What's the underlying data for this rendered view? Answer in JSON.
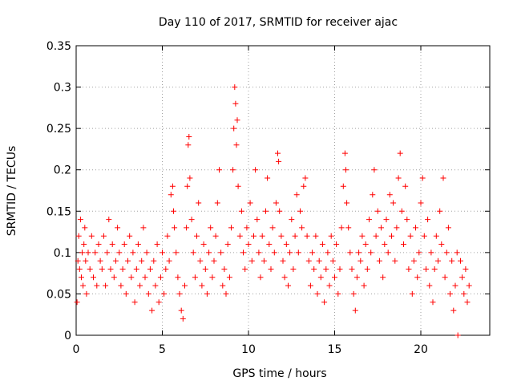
{
  "chart_data": {
    "type": "scatter",
    "title": "Day 110 of 2017, SRMTID for receiver ajac",
    "xlabel": "GPS time / hours",
    "ylabel": "SRMTID / TECUs",
    "xlim": [
      0,
      24
    ],
    "ylim": [
      0,
      0.35
    ],
    "xticks": [
      0,
      5,
      10,
      15,
      20
    ],
    "xtick_labels": [
      "0",
      "5",
      "10",
      "15",
      "20"
    ],
    "yticks": [
      0,
      0.05,
      0.1,
      0.15,
      0.2,
      0.25,
      0.3,
      0.35
    ],
    "ytick_labels": [
      "0",
      "0.05",
      "0.1",
      "0.15",
      "0.2",
      "0.25",
      "0.3",
      "0.35"
    ],
    "grid": true,
    "marker": "plus",
    "color": "#ff0000",
    "series": [
      {
        "name": "SRMTID",
        "points": [
          [
            0.05,
            0.04
          ],
          [
            0.1,
            0.09
          ],
          [
            0.15,
            0.12
          ],
          [
            0.2,
            0.08
          ],
          [
            0.25,
            0.14
          ],
          [
            0.3,
            0.07
          ],
          [
            0.35,
            0.1
          ],
          [
            0.4,
            0.06
          ],
          [
            0.45,
            0.11
          ],
          [
            0.5,
            0.13
          ],
          [
            0.55,
            0.09
          ],
          [
            0.6,
            0.05
          ],
          [
            0.7,
            0.1
          ],
          [
            0.8,
            0.08
          ],
          [
            0.9,
            0.12
          ],
          [
            1.0,
            0.07
          ],
          [
            1.1,
            0.1
          ],
          [
            1.2,
            0.06
          ],
          [
            1.3,
            0.11
          ],
          [
            1.4,
            0.09
          ],
          [
            1.5,
            0.08
          ],
          [
            1.6,
            0.12
          ],
          [
            1.7,
            0.06
          ],
          [
            1.8,
            0.1
          ],
          [
            1.9,
            0.14
          ],
          [
            2.0,
            0.08
          ],
          [
            2.1,
            0.11
          ],
          [
            2.2,
            0.07
          ],
          [
            2.3,
            0.09
          ],
          [
            2.4,
            0.13
          ],
          [
            2.5,
            0.1
          ],
          [
            2.6,
            0.06
          ],
          [
            2.7,
            0.08
          ],
          [
            2.8,
            0.11
          ],
          [
            2.9,
            0.05
          ],
          [
            3.0,
            0.09
          ],
          [
            3.1,
            0.12
          ],
          [
            3.2,
            0.07
          ],
          [
            3.3,
            0.1
          ],
          [
            3.4,
            0.04
          ],
          [
            3.5,
            0.08
          ],
          [
            3.6,
            0.11
          ],
          [
            3.7,
            0.06
          ],
          [
            3.8,
            0.09
          ],
          [
            3.9,
            0.13
          ],
          [
            4.0,
            0.07
          ],
          [
            4.1,
            0.1
          ],
          [
            4.2,
            0.05
          ],
          [
            4.3,
            0.08
          ],
          [
            4.4,
            0.03
          ],
          [
            4.5,
            0.09
          ],
          [
            4.6,
            0.06
          ],
          [
            4.7,
            0.11
          ],
          [
            4.8,
            0.04
          ],
          [
            4.9,
            0.07
          ],
          [
            5.0,
            0.1
          ],
          [
            5.1,
            0.05
          ],
          [
            5.2,
            0.08
          ],
          [
            5.3,
            0.12
          ],
          [
            5.4,
            0.09
          ],
          [
            5.5,
            0.17
          ],
          [
            5.6,
            0.18
          ],
          [
            5.65,
            0.15
          ],
          [
            5.7,
            0.13
          ],
          [
            5.8,
            0.1
          ],
          [
            5.9,
            0.07
          ],
          [
            6.0,
            0.05
          ],
          [
            6.1,
            0.03
          ],
          [
            6.2,
            0.02
          ],
          [
            6.3,
            0.06
          ],
          [
            6.4,
            0.13
          ],
          [
            6.45,
            0.18
          ],
          [
            6.5,
            0.23
          ],
          [
            6.55,
            0.24
          ],
          [
            6.6,
            0.19
          ],
          [
            6.7,
            0.14
          ],
          [
            6.8,
            0.1
          ],
          [
            6.9,
            0.07
          ],
          [
            7.0,
            0.12
          ],
          [
            7.1,
            0.16
          ],
          [
            7.2,
            0.09
          ],
          [
            7.3,
            0.06
          ],
          [
            7.4,
            0.11
          ],
          [
            7.5,
            0.08
          ],
          [
            7.6,
            0.05
          ],
          [
            7.7,
            0.1
          ],
          [
            7.8,
            0.13
          ],
          [
            7.9,
            0.07
          ],
          [
            8.0,
            0.09
          ],
          [
            8.1,
            0.12
          ],
          [
            8.2,
            0.16
          ],
          [
            8.3,
            0.2
          ],
          [
            8.4,
            0.1
          ],
          [
            8.5,
            0.06
          ],
          [
            8.6,
            0.08
          ],
          [
            8.7,
            0.05
          ],
          [
            8.8,
            0.11
          ],
          [
            8.9,
            0.07
          ],
          [
            9.0,
            0.13
          ],
          [
            9.1,
            0.2
          ],
          [
            9.15,
            0.25
          ],
          [
            9.2,
            0.3
          ],
          [
            9.25,
            0.28
          ],
          [
            9.3,
            0.23
          ],
          [
            9.35,
            0.26
          ],
          [
            9.4,
            0.18
          ],
          [
            9.5,
            0.12
          ],
          [
            9.6,
            0.15
          ],
          [
            9.7,
            0.1
          ],
          [
            9.8,
            0.08
          ],
          [
            9.9,
            0.13
          ],
          [
            10.0,
            0.11
          ],
          [
            10.1,
            0.16
          ],
          [
            10.2,
            0.09
          ],
          [
            10.3,
            0.12
          ],
          [
            10.4,
            0.2
          ],
          [
            10.5,
            0.14
          ],
          [
            10.6,
            0.1
          ],
          [
            10.7,
            0.07
          ],
          [
            10.8,
            0.12
          ],
          [
            10.9,
            0.09
          ],
          [
            11.0,
            0.15
          ],
          [
            11.1,
            0.19
          ],
          [
            11.2,
            0.11
          ],
          [
            11.3,
            0.08
          ],
          [
            11.4,
            0.13
          ],
          [
            11.5,
            0.1
          ],
          [
            11.6,
            0.16
          ],
          [
            11.7,
            0.22
          ],
          [
            11.75,
            0.21
          ],
          [
            11.8,
            0.15
          ],
          [
            11.9,
            0.12
          ],
          [
            12.0,
            0.09
          ],
          [
            12.1,
            0.07
          ],
          [
            12.2,
            0.11
          ],
          [
            12.3,
            0.06
          ],
          [
            12.4,
            0.1
          ],
          [
            12.5,
            0.14
          ],
          [
            12.6,
            0.08
          ],
          [
            12.7,
            0.12
          ],
          [
            12.8,
            0.17
          ],
          [
            12.9,
            0.1
          ],
          [
            13.0,
            0.15
          ],
          [
            13.1,
            0.13
          ],
          [
            13.2,
            0.18
          ],
          [
            13.3,
            0.19
          ],
          [
            13.4,
            0.12
          ],
          [
            13.5,
            0.09
          ],
          [
            13.6,
            0.06
          ],
          [
            13.7,
            0.1
          ],
          [
            13.8,
            0.08
          ],
          [
            13.9,
            0.12
          ],
          [
            14.0,
            0.05
          ],
          [
            14.1,
            0.09
          ],
          [
            14.2,
            0.07
          ],
          [
            14.3,
            0.11
          ],
          [
            14.4,
            0.04
          ],
          [
            14.5,
            0.08
          ],
          [
            14.6,
            0.1
          ],
          [
            14.7,
            0.06
          ],
          [
            14.8,
            0.12
          ],
          [
            14.9,
            0.09
          ],
          [
            15.0,
            0.07
          ],
          [
            15.1,
            0.11
          ],
          [
            15.2,
            0.05
          ],
          [
            15.3,
            0.08
          ],
          [
            15.4,
            0.13
          ],
          [
            15.5,
            0.18
          ],
          [
            15.6,
            0.22
          ],
          [
            15.65,
            0.2
          ],
          [
            15.7,
            0.16
          ],
          [
            15.8,
            0.13
          ],
          [
            15.9,
            0.1
          ],
          [
            16.0,
            0.08
          ],
          [
            16.1,
            0.05
          ],
          [
            16.2,
            0.03
          ],
          [
            16.3,
            0.07
          ],
          [
            16.4,
            0.1
          ],
          [
            16.5,
            0.09
          ],
          [
            16.6,
            0.12
          ],
          [
            16.7,
            0.06
          ],
          [
            16.8,
            0.11
          ],
          [
            16.9,
            0.08
          ],
          [
            17.0,
            0.14
          ],
          [
            17.1,
            0.1
          ],
          [
            17.2,
            0.17
          ],
          [
            17.3,
            0.2
          ],
          [
            17.4,
            0.12
          ],
          [
            17.5,
            0.15
          ],
          [
            17.6,
            0.09
          ],
          [
            17.7,
            0.13
          ],
          [
            17.8,
            0.07
          ],
          [
            17.9,
            0.11
          ],
          [
            18.0,
            0.14
          ],
          [
            18.1,
            0.1
          ],
          [
            18.2,
            0.17
          ],
          [
            18.3,
            0.12
          ],
          [
            18.4,
            0.16
          ],
          [
            18.5,
            0.09
          ],
          [
            18.6,
            0.13
          ],
          [
            18.7,
            0.19
          ],
          [
            18.8,
            0.22
          ],
          [
            18.9,
            0.15
          ],
          [
            19.0,
            0.11
          ],
          [
            19.1,
            0.18
          ],
          [
            19.2,
            0.14
          ],
          [
            19.3,
            0.08
          ],
          [
            19.4,
            0.12
          ],
          [
            19.5,
            0.05
          ],
          [
            19.6,
            0.09
          ],
          [
            19.7,
            0.13
          ],
          [
            19.8,
            0.07
          ],
          [
            19.9,
            0.1
          ],
          [
            20.0,
            0.16
          ],
          [
            20.1,
            0.19
          ],
          [
            20.2,
            0.12
          ],
          [
            20.3,
            0.08
          ],
          [
            20.4,
            0.14
          ],
          [
            20.5,
            0.06
          ],
          [
            20.6,
            0.1
          ],
          [
            20.7,
            0.04
          ],
          [
            20.8,
            0.08
          ],
          [
            20.9,
            0.12
          ],
          [
            21.0,
            0.09
          ],
          [
            21.1,
            0.15
          ],
          [
            21.2,
            0.11
          ],
          [
            21.3,
            0.19
          ],
          [
            21.4,
            0.07
          ],
          [
            21.5,
            0.1
          ],
          [
            21.6,
            0.13
          ],
          [
            21.7,
            0.05
          ],
          [
            21.8,
            0.09
          ],
          [
            21.9,
            0.03
          ],
          [
            22.0,
            0.06
          ],
          [
            22.1,
            0.1
          ],
          [
            22.15,
            0.0
          ],
          [
            22.3,
            0.09
          ],
          [
            22.4,
            0.07
          ],
          [
            22.5,
            0.05
          ],
          [
            22.6,
            0.08
          ],
          [
            22.7,
            0.04
          ],
          [
            22.8,
            0.06
          ]
        ]
      }
    ]
  }
}
